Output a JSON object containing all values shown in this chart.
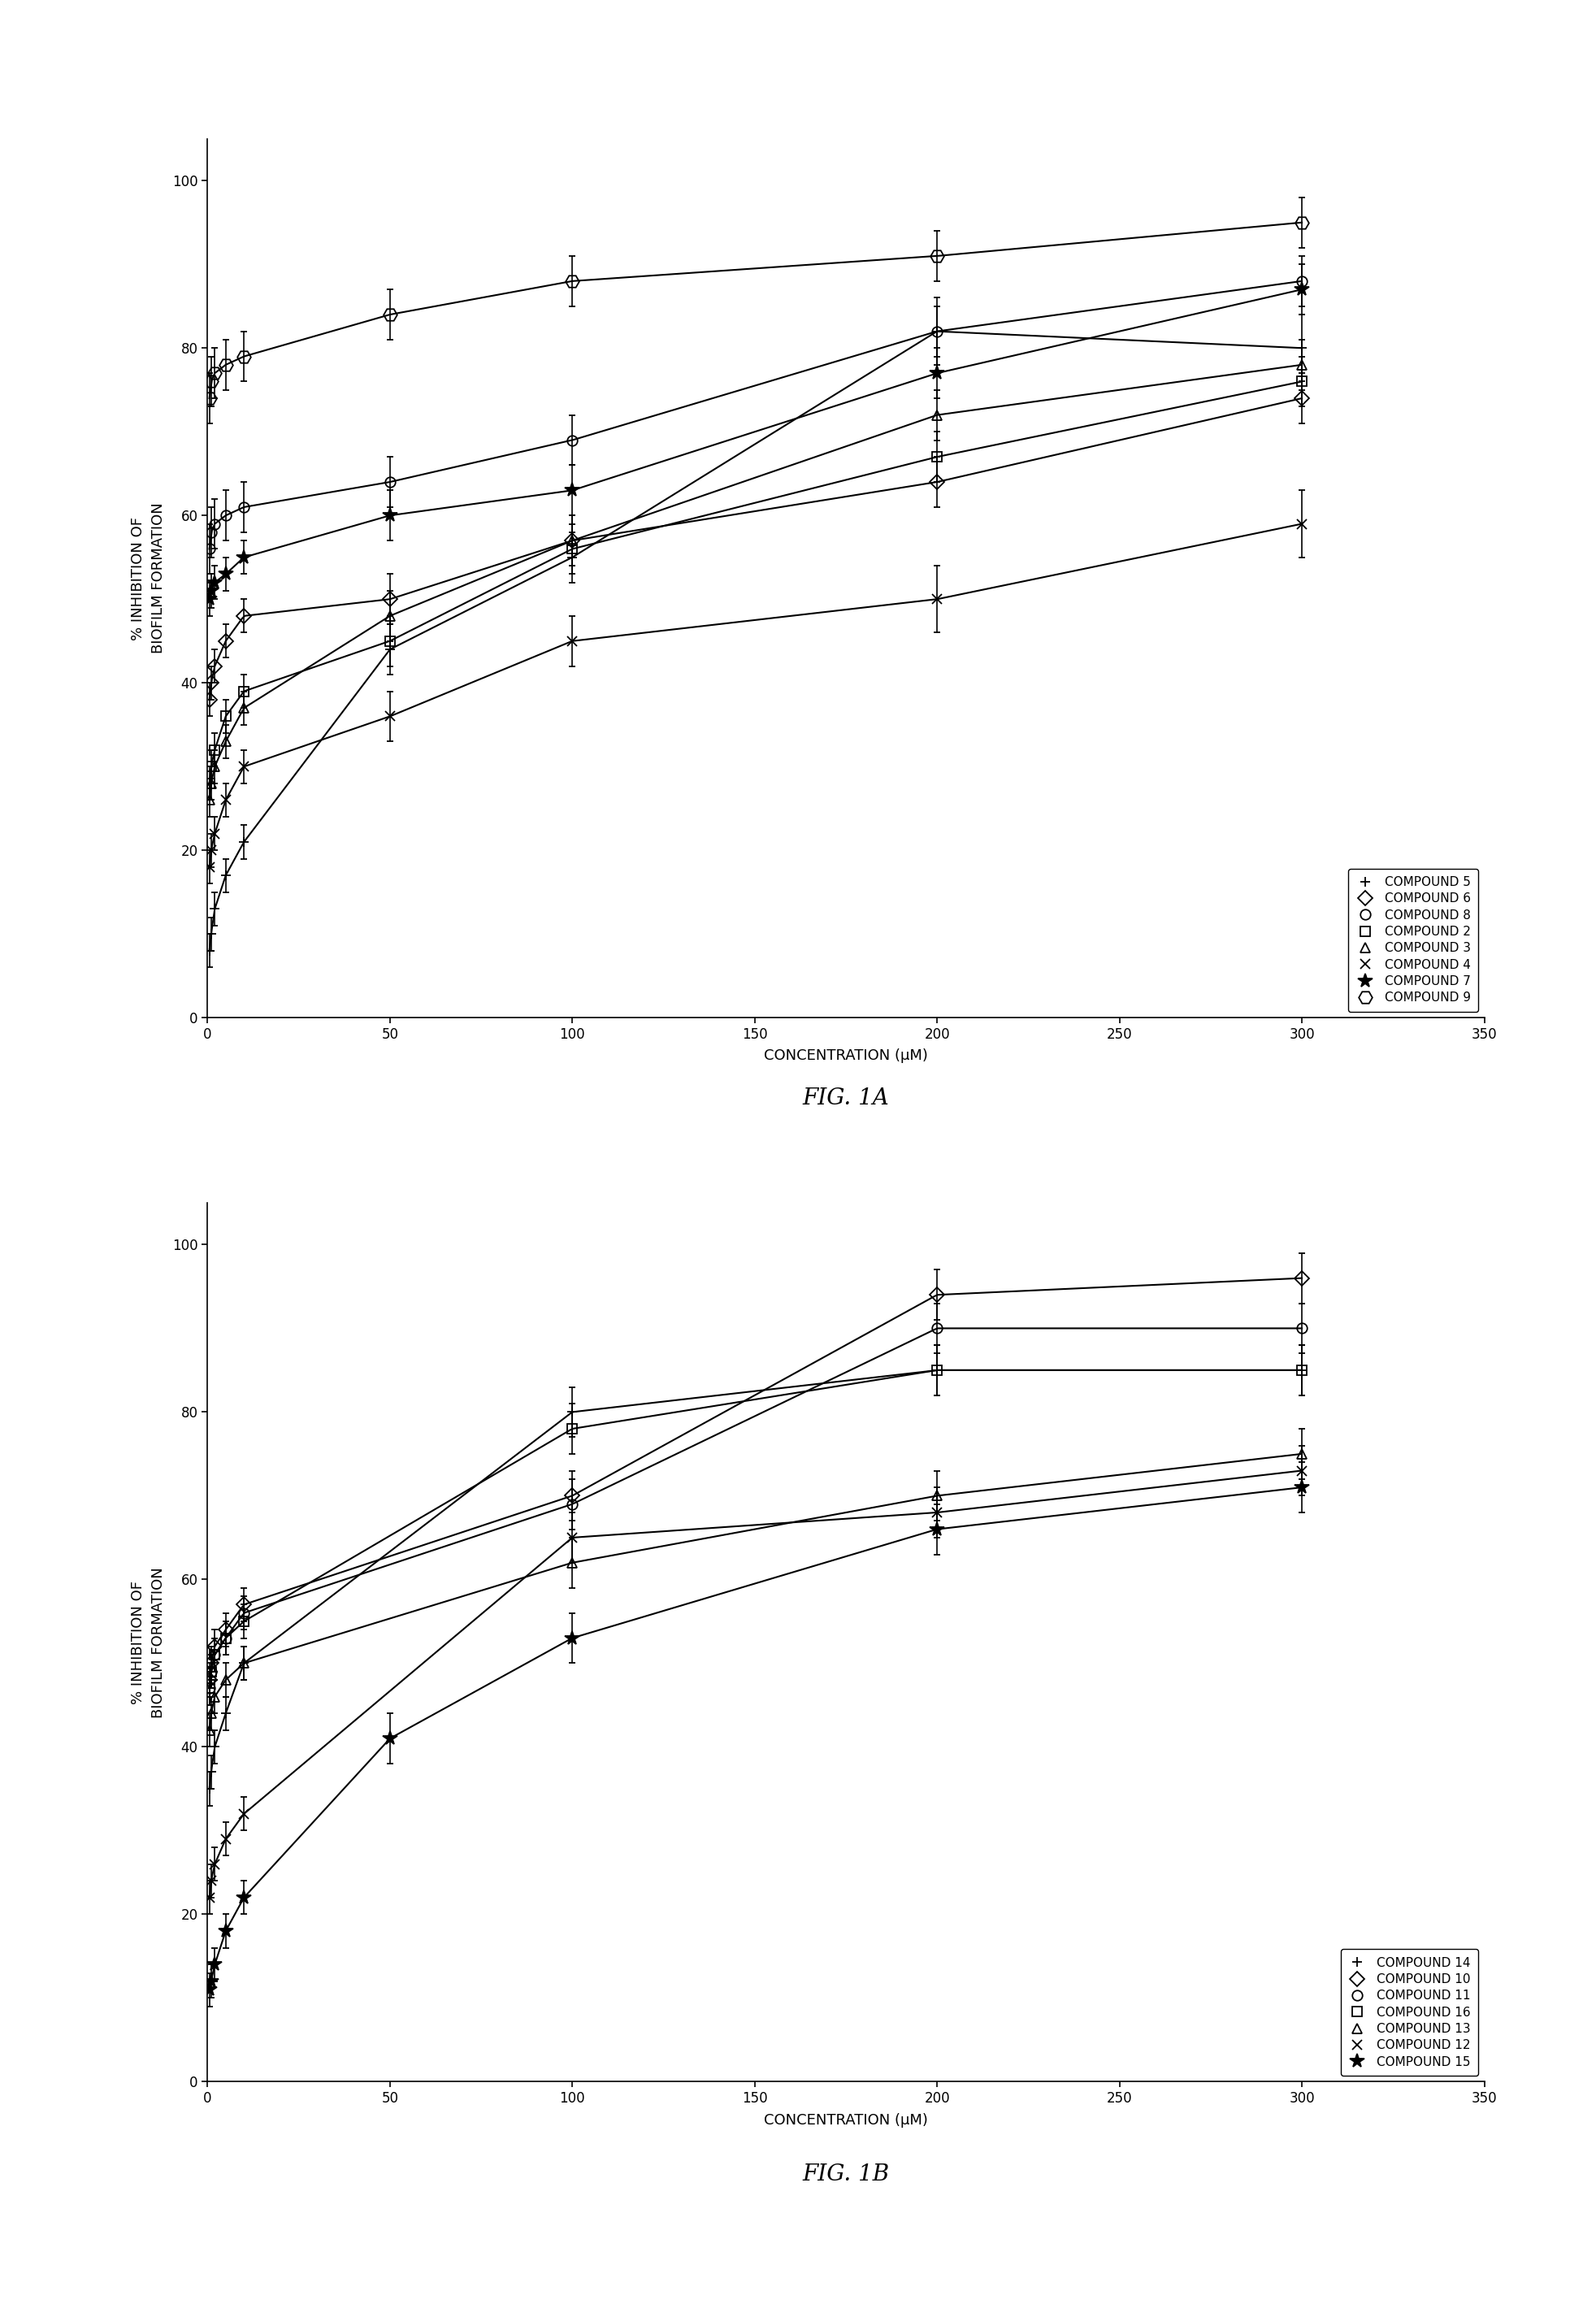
{
  "fig1a": {
    "title": "FIG. 1A",
    "compounds": [
      {
        "name": "COMPOUND 5",
        "marker": "+",
        "x": [
          0.5,
          1,
          2,
          5,
          10,
          50,
          100,
          200,
          300
        ],
        "y": [
          8,
          10,
          13,
          17,
          21,
          44,
          55,
          82,
          80
        ],
        "yerr": [
          2,
          2,
          2,
          2,
          2,
          3,
          3,
          4,
          4
        ]
      },
      {
        "name": "COMPOUND 6",
        "marker": "D",
        "x": [
          0.5,
          1,
          2,
          5,
          10,
          50,
          100,
          200,
          300
        ],
        "y": [
          38,
          40,
          42,
          45,
          48,
          50,
          57,
          64,
          74
        ],
        "yerr": [
          2,
          2,
          2,
          2,
          2,
          3,
          3,
          3,
          3
        ]
      },
      {
        "name": "COMPOUND 8",
        "marker": "o",
        "x": [
          0.5,
          1,
          2,
          5,
          10,
          50,
          100,
          200,
          300
        ],
        "y": [
          56,
          58,
          59,
          60,
          61,
          64,
          69,
          82,
          88
        ],
        "yerr": [
          3,
          3,
          3,
          3,
          3,
          3,
          3,
          3,
          3
        ]
      },
      {
        "name": "COMPOUND 2",
        "marker": "s",
        "x": [
          0.5,
          1,
          2,
          5,
          10,
          50,
          100,
          200,
          300
        ],
        "y": [
          28,
          30,
          32,
          36,
          39,
          45,
          56,
          67,
          76
        ],
        "yerr": [
          2,
          2,
          2,
          2,
          2,
          3,
          3,
          3,
          3
        ]
      },
      {
        "name": "COMPOUND 3",
        "marker": "^",
        "x": [
          0.5,
          1,
          2,
          5,
          10,
          50,
          100,
          200,
          300
        ],
        "y": [
          26,
          28,
          30,
          33,
          37,
          48,
          57,
          72,
          78
        ],
        "yerr": [
          2,
          2,
          2,
          2,
          2,
          3,
          3,
          3,
          3
        ]
      },
      {
        "name": "COMPOUND 4",
        "marker": "x",
        "x": [
          0.5,
          1,
          2,
          5,
          10,
          50,
          100,
          200,
          300
        ],
        "y": [
          18,
          20,
          22,
          26,
          30,
          36,
          45,
          50,
          59
        ],
        "yerr": [
          2,
          2,
          2,
          2,
          2,
          3,
          3,
          4,
          4
        ]
      },
      {
        "name": "COMPOUND 7",
        "marker": "*",
        "x": [
          0.5,
          1,
          2,
          5,
          10,
          50,
          100,
          200,
          300
        ],
        "y": [
          50,
          51,
          52,
          53,
          55,
          60,
          63,
          77,
          87
        ],
        "yerr": [
          2,
          2,
          2,
          2,
          2,
          3,
          3,
          3,
          3
        ]
      },
      {
        "name": "COMPOUND 9",
        "marker": "H",
        "x": [
          0.5,
          1,
          2,
          5,
          10,
          50,
          100,
          200,
          300
        ],
        "y": [
          74,
          76,
          77,
          78,
          79,
          84,
          88,
          91,
          95
        ],
        "yerr": [
          3,
          3,
          3,
          3,
          3,
          3,
          3,
          3,
          3
        ]
      }
    ],
    "xlabel": "CONCENTRATION (μM)",
    "ylabel": "% INHIBITION OF\nBIOFILM FORMATION",
    "xlim": [
      0,
      350
    ],
    "ylim": [
      0,
      105
    ],
    "xticks": [
      0,
      50,
      100,
      150,
      200,
      250,
      300,
      350
    ],
    "yticks": [
      0,
      20,
      40,
      60,
      80,
      100
    ]
  },
  "fig1b": {
    "title": "FIG. 1B",
    "compounds": [
      {
        "name": "COMPOUND 14",
        "marker": "+",
        "x": [
          0.5,
          1,
          2,
          5,
          10,
          100,
          200,
          300
        ],
        "y": [
          35,
          37,
          40,
          44,
          50,
          80,
          85,
          85
        ],
        "yerr": [
          2,
          2,
          2,
          2,
          2,
          3,
          3,
          3
        ]
      },
      {
        "name": "COMPOUND 10",
        "marker": "D",
        "x": [
          0.5,
          1,
          2,
          5,
          10,
          100,
          200,
          300
        ],
        "y": [
          48,
          50,
          52,
          54,
          57,
          70,
          94,
          96
        ],
        "yerr": [
          2,
          2,
          2,
          2,
          2,
          3,
          3,
          3
        ]
      },
      {
        "name": "COMPOUND 11",
        "marker": "o",
        "x": [
          0.5,
          1,
          2,
          5,
          10,
          100,
          200,
          300
        ],
        "y": [
          47,
          49,
          51,
          53,
          56,
          69,
          90,
          90
        ],
        "yerr": [
          2,
          2,
          2,
          2,
          2,
          3,
          3,
          3
        ]
      },
      {
        "name": "COMPOUND 16",
        "marker": "s",
        "x": [
          0.5,
          1,
          2,
          5,
          10,
          100,
          200,
          300
        ],
        "y": [
          47,
          49,
          51,
          53,
          55,
          78,
          85,
          85
        ],
        "yerr": [
          2,
          2,
          2,
          2,
          2,
          3,
          3,
          3
        ]
      },
      {
        "name": "COMPOUND 13",
        "marker": "^",
        "x": [
          0.5,
          1,
          2,
          5,
          10,
          100,
          200,
          300
        ],
        "y": [
          42,
          44,
          46,
          48,
          50,
          62,
          70,
          75
        ],
        "yerr": [
          2,
          2,
          2,
          2,
          2,
          3,
          3,
          3
        ]
      },
      {
        "name": "COMPOUND 12",
        "marker": "x",
        "x": [
          0.5,
          1,
          2,
          5,
          10,
          100,
          200,
          300
        ],
        "y": [
          22,
          24,
          26,
          29,
          32,
          65,
          68,
          73
        ],
        "yerr": [
          2,
          2,
          2,
          2,
          2,
          3,
          3,
          3
        ]
      },
      {
        "name": "COMPOUND 15",
        "marker": "*",
        "x": [
          0.5,
          1,
          2,
          5,
          10,
          50,
          100,
          200,
          300
        ],
        "y": [
          11,
          12,
          14,
          18,
          22,
          41,
          53,
          66,
          71
        ],
        "yerr": [
          2,
          2,
          2,
          2,
          2,
          3,
          3,
          3,
          3
        ]
      }
    ],
    "xlabel": "CONCENTRATION (μM)",
    "ylabel": "% INHIBITION OF\nBIOFILM FORMATION",
    "xlim": [
      0,
      350
    ],
    "ylim": [
      0,
      105
    ],
    "xticks": [
      0,
      50,
      100,
      150,
      200,
      250,
      300,
      350
    ],
    "yticks": [
      0,
      20,
      40,
      60,
      80,
      100
    ]
  },
  "background_color": "#ffffff",
  "line_color": "#000000",
  "marker_color": "#000000",
  "marker_size": 9,
  "star_size": 13,
  "hex_size": 12,
  "line_width": 1.5,
  "font_size_label": 13,
  "font_size_tick": 12,
  "font_size_legend": 11,
  "font_size_title": 20
}
